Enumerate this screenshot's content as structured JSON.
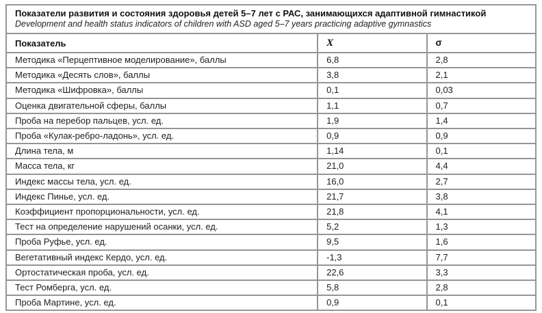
{
  "page": {
    "background": "#ffffff",
    "border_color": "#939598",
    "text_color": "#1a1a1a"
  },
  "caption": {
    "title_ru": "Показатели развития и состояния здоровья детей 5–7 лет с РАС, занимающихся адаптивной гимнастикой",
    "subtitle_en": "Development and health status indicators of children with ASD aged 5–7 years practicing adaptive gymnastics"
  },
  "table": {
    "headers": {
      "indicator": "Показатель",
      "mean": "X",
      "sigma": "σ"
    },
    "rows": [
      {
        "indicator": "Методика «Перцептивное моделирование», баллы",
        "mean": "6,8",
        "sigma": "2,8"
      },
      {
        "indicator": "Методика «Десять слов», баллы",
        "mean": "3,8",
        "sigma": "2,1"
      },
      {
        "indicator": "Методика «Шифровка», баллы",
        "mean": "0,1",
        "sigma": "0,03"
      },
      {
        "indicator": "Оценка двигательной сферы, баллы",
        "mean": "1,1",
        "sigma": "0,7"
      },
      {
        "indicator": "Проба на перебор пальцев, усл. ед.",
        "mean": "1,9",
        "sigma": "1,4"
      },
      {
        "indicator": "Проба «Кулак-ребро-ладонь», усл. ед.",
        "mean": "0,9",
        "sigma": "0,9"
      },
      {
        "indicator": "Длина тела, м",
        "mean": "1,14",
        "sigma": "0,1"
      },
      {
        "indicator": "Масса тела, кг",
        "mean": "21,0",
        "sigma": "4,4"
      },
      {
        "indicator": "Индекс массы тела, усл. ед.",
        "mean": "16,0",
        "sigma": "2,7"
      },
      {
        "indicator": "Индекс Пинье, усл. ед.",
        "mean": "21,7",
        "sigma": "3,8"
      },
      {
        "indicator": "Коэффициент пропорциональности, усл. ед.",
        "mean": "21,8",
        "sigma": "4,1"
      },
      {
        "indicator": "Тест на определение нарушений осанки, усл. ед.",
        "mean": "5,2",
        "sigma": "1,3"
      },
      {
        "indicator": "Проба Руфье, усл. ед.",
        "mean": "9,5",
        "sigma": "1,6"
      },
      {
        "indicator": "Вегетативный индекс Кердо, усл. ед.",
        "mean": "-1,3",
        "sigma": "7,7"
      },
      {
        "indicator": "Ортостатическая проба, усл. ед.",
        "mean": "22,6",
        "sigma": "3,3"
      },
      {
        "indicator": "Тест Ромберга, усл. ед.",
        "mean": "5,8",
        "sigma": "2,8"
      },
      {
        "indicator": "Проба Мартине, усл. ед.",
        "mean": "0,9",
        "sigma": "0,1"
      }
    ]
  }
}
